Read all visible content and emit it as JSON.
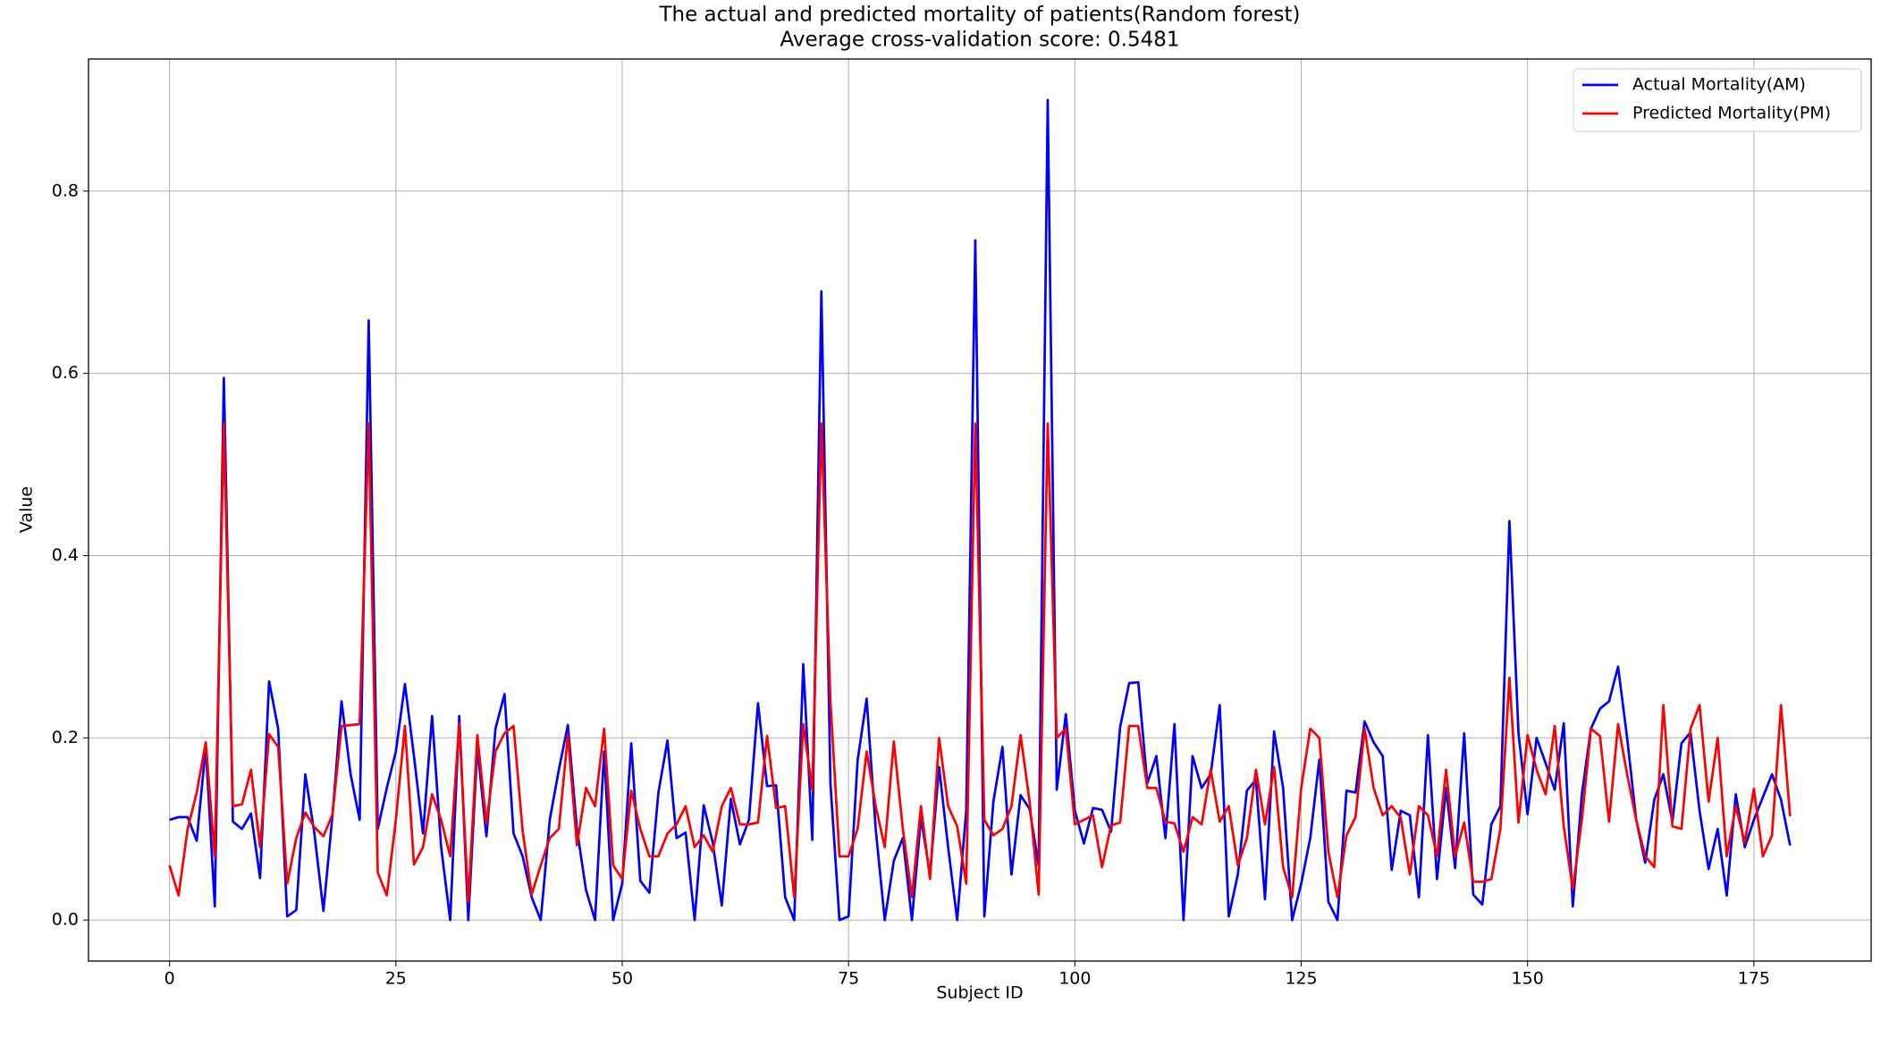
{
  "chart_data": {
    "type": "line",
    "title": "The actual and predicted mortality of patients(Random forest)",
    "subtitle": "Average cross-validation score: 0.5481",
    "x_label": "Subject ID",
    "y_label": "Value",
    "x": [
      0,
      1,
      2,
      3,
      4,
      5,
      6,
      7,
      8,
      9,
      10,
      11,
      12,
      13,
      14,
      15,
      16,
      17,
      18,
      19,
      20,
      21,
      22,
      23,
      24,
      25,
      26,
      27,
      28,
      29,
      30,
      31,
      32,
      33,
      34,
      35,
      36,
      37,
      38,
      39,
      40,
      41,
      42,
      43,
      44,
      45,
      46,
      47,
      48,
      49,
      50,
      51,
      52,
      53,
      54,
      55,
      56,
      57,
      58,
      59,
      60,
      61,
      62,
      63,
      64,
      65,
      66,
      67,
      68,
      69,
      70,
      71,
      72,
      73,
      74,
      75,
      76,
      77,
      78,
      79,
      80,
      81,
      82,
      83,
      84,
      85,
      86,
      87,
      88,
      89,
      90,
      91,
      92,
      93,
      94,
      95,
      96,
      97,
      98,
      99,
      100,
      101,
      102,
      103,
      104,
      105,
      106,
      107,
      108,
      109,
      110,
      111,
      112,
      113,
      114,
      115,
      116,
      117,
      118,
      119,
      120,
      121,
      122,
      123,
      124,
      125,
      126,
      127,
      128,
      129,
      130,
      131,
      132,
      133,
      134,
      135,
      136,
      137,
      138,
      139,
      140,
      141,
      142,
      143,
      144,
      145,
      146,
      147,
      148,
      149,
      150,
      151,
      152,
      153,
      154,
      155,
      156,
      157,
      158,
      159,
      160,
      161,
      162,
      163,
      164,
      165,
      166,
      167,
      168,
      169,
      170,
      171,
      172,
      173,
      174,
      175,
      176,
      177,
      178,
      179
    ],
    "series": [
      {
        "name": "Actual Mortality(AM)",
        "color": "#0000ff",
        "values": [
          0.11,
          0.113,
          0.113,
          0.087,
          0.19,
          0.015,
          0.595,
          0.108,
          0.1,
          0.117,
          0.046,
          0.262,
          0.21,
          0.004,
          0.011,
          0.16,
          0.095,
          0.01,
          0.115,
          0.24,
          0.16,
          0.11,
          0.658,
          0.1,
          0.145,
          0.185,
          0.259,
          0.18,
          0.095,
          0.224,
          0.08,
          0.0,
          0.224,
          0.0,
          0.19,
          0.092,
          0.21,
          0.248,
          0.095,
          0.07,
          0.025,
          0.0,
          0.11,
          0.165,
          0.214,
          0.1,
          0.033,
          0.0,
          0.185,
          0.0,
          0.04,
          0.194,
          0.043,
          0.03,
          0.14,
          0.197,
          0.09,
          0.096,
          0.0,
          0.126,
          0.085,
          0.016,
          0.133,
          0.083,
          0.11,
          0.238,
          0.147,
          0.148,
          0.025,
          0.0,
          0.281,
          0.088,
          0.69,
          0.15,
          0.0,
          0.004,
          0.175,
          0.243,
          0.1,
          0.0,
          0.065,
          0.09,
          0.0,
          0.112,
          0.05,
          0.168,
          0.08,
          0.0,
          0.12,
          0.746,
          0.004,
          0.13,
          0.19,
          0.05,
          0.137,
          0.122,
          0.06,
          0.9,
          0.143,
          0.226,
          0.12,
          0.084,
          0.123,
          0.121,
          0.097,
          0.212,
          0.26,
          0.261,
          0.15,
          0.18,
          0.09,
          0.215,
          0.0,
          0.18,
          0.145,
          0.16,
          0.236,
          0.004,
          0.05,
          0.142,
          0.154,
          0.023,
          0.207,
          0.145,
          0.0,
          0.04,
          0.09,
          0.176,
          0.02,
          0.0,
          0.142,
          0.14,
          0.218,
          0.195,
          0.18,
          0.055,
          0.12,
          0.115,
          0.025,
          0.203,
          0.045,
          0.145,
          0.057,
          0.205,
          0.028,
          0.017,
          0.105,
          0.125,
          0.438,
          0.205,
          0.116,
          0.2,
          0.172,
          0.143,
          0.216,
          0.015,
          0.138,
          0.21,
          0.232,
          0.24,
          0.278,
          0.2,
          0.11,
          0.063,
          0.132,
          0.16,
          0.108,
          0.194,
          0.206,
          0.12,
          0.056,
          0.1,
          0.027,
          0.138,
          0.08,
          0.11,
          0.135,
          0.16,
          0.132,
          0.082
        ]
      },
      {
        "name": "Predicted Mortality(PM)",
        "color": "#ff0000",
        "values": [
          0.06,
          0.027,
          0.1,
          0.14,
          0.195,
          0.07,
          0.545,
          0.125,
          0.127,
          0.165,
          0.08,
          0.204,
          0.19,
          0.04,
          0.09,
          0.118,
          0.102,
          0.092,
          0.116,
          0.213,
          0.214,
          0.215,
          0.545,
          0.052,
          0.027,
          0.11,
          0.213,
          0.061,
          0.08,
          0.138,
          0.11,
          0.07,
          0.216,
          0.02,
          0.203,
          0.106,
          0.185,
          0.205,
          0.213,
          0.098,
          0.028,
          0.06,
          0.09,
          0.1,
          0.203,
          0.082,
          0.145,
          0.125,
          0.21,
          0.06,
          0.045,
          0.142,
          0.1,
          0.07,
          0.07,
          0.095,
          0.105,
          0.125,
          0.08,
          0.093,
          0.075,
          0.125,
          0.145,
          0.105,
          0.105,
          0.107,
          0.202,
          0.123,
          0.125,
          0.025,
          0.215,
          0.143,
          0.545,
          0.24,
          0.07,
          0.07,
          0.1,
          0.185,
          0.125,
          0.08,
          0.196,
          0.1,
          0.025,
          0.125,
          0.045,
          0.2,
          0.125,
          0.103,
          0.04,
          0.545,
          0.11,
          0.093,
          0.1,
          0.125,
          0.203,
          0.13,
          0.028,
          0.545,
          0.2,
          0.21,
          0.105,
          0.11,
          0.115,
          0.058,
          0.104,
          0.107,
          0.213,
          0.213,
          0.145,
          0.145,
          0.108,
          0.106,
          0.075,
          0.113,
          0.105,
          0.165,
          0.108,
          0.125,
          0.06,
          0.09,
          0.165,
          0.105,
          0.168,
          0.058,
          0.025,
          0.145,
          0.21,
          0.2,
          0.075,
          0.025,
          0.093,
          0.113,
          0.21,
          0.145,
          0.115,
          0.125,
          0.112,
          0.05,
          0.125,
          0.115,
          0.07,
          0.165,
          0.07,
          0.107,
          0.042,
          0.042,
          0.045,
          0.1,
          0.266,
          0.107,
          0.203,
          0.165,
          0.138,
          0.213,
          0.103,
          0.034,
          0.11,
          0.21,
          0.202,
          0.108,
          0.215,
          0.16,
          0.11,
          0.07,
          0.058,
          0.236,
          0.103,
          0.1,
          0.21,
          0.236,
          0.13,
          0.2,
          0.07,
          0.125,
          0.085,
          0.144,
          0.07,
          0.093,
          0.236,
          0.114
        ]
      }
    ],
    "xlim": [
      -8.95,
      187.95
    ],
    "ylim": [
      -0.045,
      0.945
    ],
    "xticks": [
      0,
      25,
      50,
      75,
      100,
      125,
      150,
      175
    ],
    "yticks": [
      {
        "value": 0,
        "label": "0.0"
      },
      0.2,
      0.4,
      0.6,
      0.8
    ],
    "grid": true,
    "legend": "upper right"
  }
}
